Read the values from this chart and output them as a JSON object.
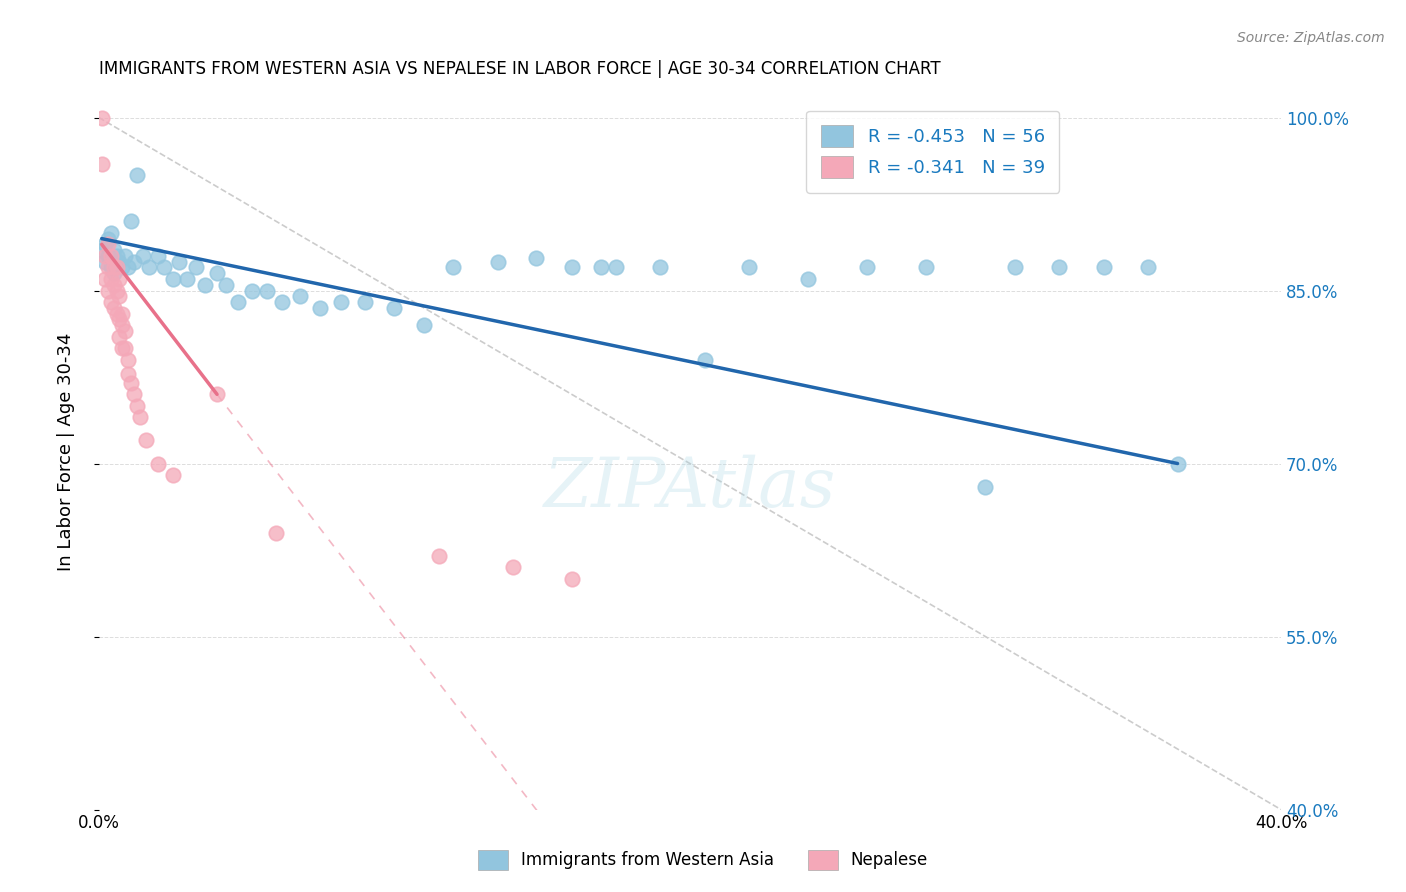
{
  "title": "IMMIGRANTS FROM WESTERN ASIA VS NEPALESE IN LABOR FORCE | AGE 30-34 CORRELATION CHART",
  "source": "Source: ZipAtlas.com",
  "xlabel": "",
  "ylabel": "In Labor Force | Age 30-34",
  "xlim": [
    0.0,
    0.4
  ],
  "ylim": [
    0.4,
    1.02
  ],
  "xticks": [
    0.0,
    0.05,
    0.1,
    0.15,
    0.2,
    0.25,
    0.3,
    0.35,
    0.4
  ],
  "yticks": [
    0.4,
    0.55,
    0.7,
    0.85,
    1.0
  ],
  "ytick_labels": [
    "40.0%",
    "55.0%",
    "70.0%",
    "85.0%",
    "100.0%"
  ],
  "xtick_labels": [
    "0.0%",
    "",
    "",
    "",
    "",
    "",
    "",
    "",
    "40.0%"
  ],
  "blue_R": -0.453,
  "blue_N": 56,
  "pink_R": -0.341,
  "pink_N": 39,
  "blue_label": "Immigrants from Western Asia",
  "pink_label": "Nepalese",
  "blue_color": "#92C5DE",
  "pink_color": "#F4A8B8",
  "blue_line_color": "#2166AC",
  "pink_line_color": "#E8718A",
  "ref_line_color": "#CCCCCC",
  "background_color": "#FFFFFF",
  "blue_scatter_x": [
    0.001,
    0.002,
    0.002,
    0.003,
    0.003,
    0.004,
    0.004,
    0.005,
    0.005,
    0.006,
    0.007,
    0.008,
    0.009,
    0.01,
    0.011,
    0.012,
    0.013,
    0.015,
    0.017,
    0.02,
    0.022,
    0.025,
    0.027,
    0.03,
    0.033,
    0.036,
    0.04,
    0.043,
    0.047,
    0.052,
    0.057,
    0.062,
    0.068,
    0.075,
    0.082,
    0.09,
    0.1,
    0.11,
    0.12,
    0.135,
    0.148,
    0.16,
    0.175,
    0.19,
    0.205,
    0.22,
    0.24,
    0.26,
    0.28,
    0.3,
    0.17,
    0.31,
    0.325,
    0.34,
    0.355,
    0.365
  ],
  "blue_scatter_y": [
    0.885,
    0.89,
    0.875,
    0.895,
    0.88,
    0.9,
    0.87,
    0.885,
    0.865,
    0.88,
    0.875,
    0.87,
    0.88,
    0.87,
    0.91,
    0.875,
    0.95,
    0.88,
    0.87,
    0.88,
    0.87,
    0.86,
    0.875,
    0.86,
    0.87,
    0.855,
    0.865,
    0.855,
    0.84,
    0.85,
    0.85,
    0.84,
    0.845,
    0.835,
    0.84,
    0.84,
    0.835,
    0.82,
    0.87,
    0.875,
    0.878,
    0.87,
    0.87,
    0.87,
    0.79,
    0.87,
    0.86,
    0.87,
    0.87,
    0.68,
    0.87,
    0.87,
    0.87,
    0.87,
    0.87,
    0.7
  ],
  "pink_scatter_x": [
    0.001,
    0.001,
    0.002,
    0.002,
    0.003,
    0.003,
    0.003,
    0.004,
    0.004,
    0.004,
    0.005,
    0.005,
    0.005,
    0.006,
    0.006,
    0.006,
    0.007,
    0.007,
    0.007,
    0.007,
    0.008,
    0.008,
    0.008,
    0.009,
    0.009,
    0.01,
    0.01,
    0.011,
    0.012,
    0.013,
    0.014,
    0.016,
    0.02,
    0.025,
    0.04,
    0.06,
    0.115,
    0.14,
    0.16
  ],
  "pink_scatter_y": [
    1.0,
    0.96,
    0.88,
    0.86,
    0.89,
    0.87,
    0.85,
    0.88,
    0.86,
    0.84,
    0.87,
    0.855,
    0.835,
    0.87,
    0.85,
    0.83,
    0.86,
    0.845,
    0.825,
    0.81,
    0.83,
    0.82,
    0.8,
    0.815,
    0.8,
    0.79,
    0.778,
    0.77,
    0.76,
    0.75,
    0.74,
    0.72,
    0.7,
    0.69,
    0.76,
    0.64,
    0.62,
    0.61,
    0.6
  ],
  "blue_trend_x0": 0.001,
  "blue_trend_x1": 0.365,
  "blue_trend_y0": 0.895,
  "blue_trend_y1": 0.7,
  "pink_trend_x0": 0.001,
  "pink_trend_x1": 0.04,
  "pink_trend_y0": 0.89,
  "pink_trend_y1": 0.76
}
